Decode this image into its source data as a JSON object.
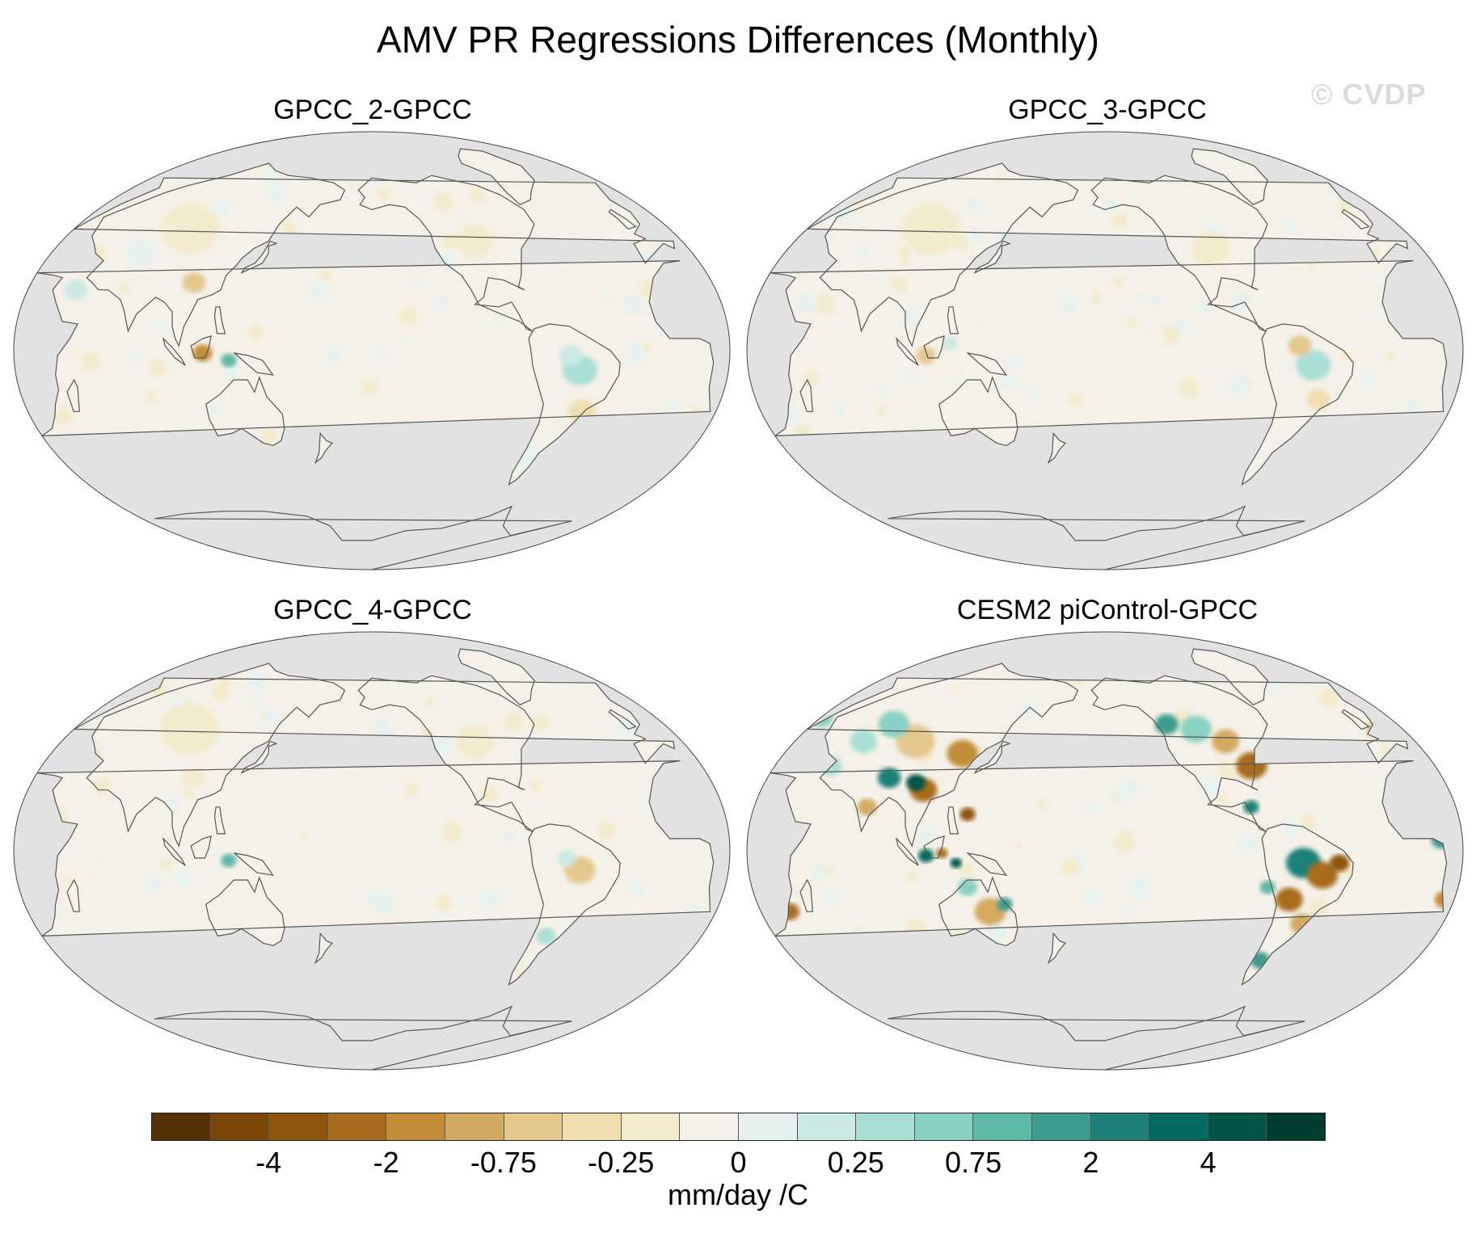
{
  "figure": {
    "title": "AMV PR Regressions Differences (Monthly)",
    "watermark": "© CVDP",
    "ocean_color": "#e2e2e2",
    "coastline_color": "#555555"
  },
  "panels": [
    {
      "title": "GPCC_2-GPCC"
    },
    {
      "title": "GPCC_3-GPCC"
    },
    {
      "title": "GPCC_4-GPCC"
    },
    {
      "title": "CESM2 piControl-GPCC"
    }
  ],
  "colorbar": {
    "units": "mm/day /C",
    "colors": [
      "#563105",
      "#7a4709",
      "#8f550f",
      "#a86c1e",
      "#c28c39",
      "#d3aa61",
      "#e4c88e",
      "#f1deb0",
      "#f4ebcc",
      "#f5f1e8",
      "#e6f2f0",
      "#cce9e6",
      "#aadfd6",
      "#89d1c2",
      "#5db8a8",
      "#3d9b90",
      "#1f8179",
      "#036a62",
      "#015448",
      "#003c30"
    ],
    "tick_labels": [
      "-4",
      "-2",
      "-0.75",
      "-0.25",
      "0",
      "0.25",
      "0.75",
      "2",
      "4"
    ]
  }
}
